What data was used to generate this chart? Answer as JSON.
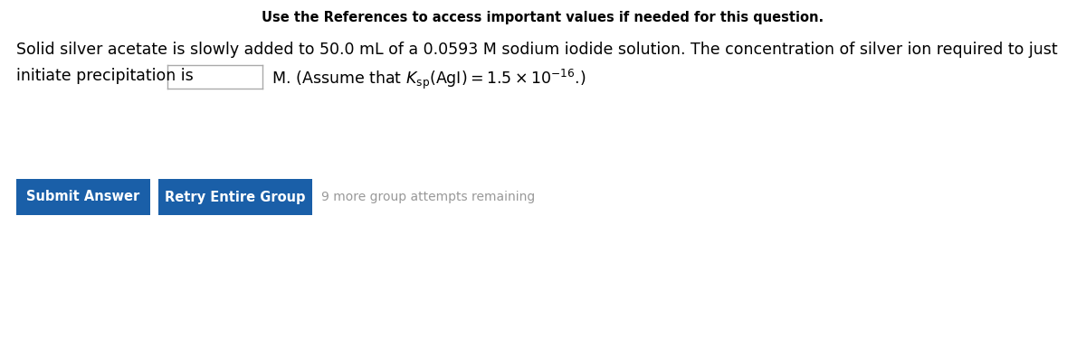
{
  "title_text": "Use the References to access important values if needed for this question.",
  "body_line1": "Solid silver acetate is slowly added to 50.0 mL of a 0.0593 M sodium iodide solution. The concentration of silver ion required to just",
  "body_line2_pre": "initiate precipitation is ",
  "body_line2_post_math": " M. (Assume that $\\mathit{K}_{\\mathrm{sp}}(\\mathrm{AgI}) = 1.5 \\times 10^{-16}$.)",
  "title_fontsize": 10.5,
  "body_fontsize": 12.5,
  "button1_text": "Submit Answer",
  "button2_text": "Retry Entire Group",
  "button_color": "#1a5fa8",
  "button_text_color": "#ffffff",
  "button_fontsize": 10.5,
  "attempts_text": "9 more group attempts remaining",
  "attempts_color": "#999999",
  "attempts_fontsize": 10,
  "background_color": "#ffffff",
  "text_color": "#000000",
  "input_box_border": "#aaaaaa"
}
